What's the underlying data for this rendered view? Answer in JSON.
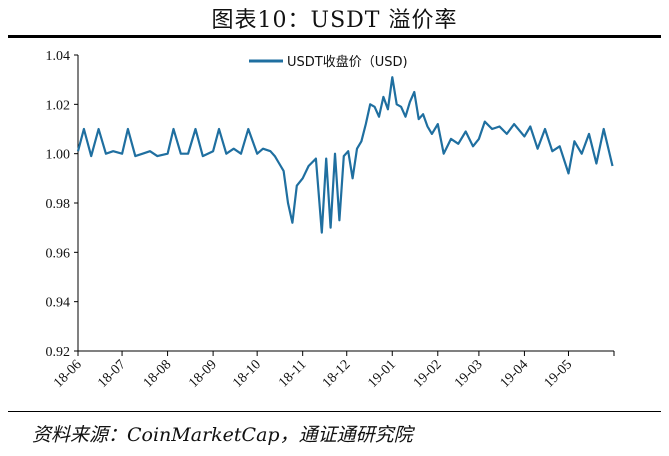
{
  "header": {
    "title": "图表10：USDT 溢价率"
  },
  "footer": {
    "source": "资料来源：CoinMarketCap，通证通研究院"
  },
  "chart_data": {
    "type": "line",
    "title": "",
    "xlabel": "",
    "ylabel": "",
    "legend_position": "top-center",
    "grid": false,
    "ylim": [
      0.92,
      1.04
    ],
    "yticks": [
      "0.92",
      "0.94",
      "0.96",
      "0.98",
      "1.00",
      "1.02",
      "1.04"
    ],
    "xticks": [
      "18-06",
      "18-07",
      "18-08",
      "18-09",
      "18-10",
      "18-11",
      "18-12",
      "19-01",
      "19-02",
      "19-03",
      "19-04",
      "19-05"
    ],
    "series": [
      {
        "name": "USDT收盘价（USD)",
        "color": "#1f6fa0",
        "x": [
          "2018-06-01",
          "2018-06-05",
          "2018-06-10",
          "2018-06-15",
          "2018-06-20",
          "2018-06-25",
          "2018-07-01",
          "2018-07-05",
          "2018-07-10",
          "2018-07-15",
          "2018-07-20",
          "2018-07-25",
          "2018-08-01",
          "2018-08-05",
          "2018-08-10",
          "2018-08-15",
          "2018-08-20",
          "2018-08-25",
          "2018-09-01",
          "2018-09-05",
          "2018-09-10",
          "2018-09-15",
          "2018-09-20",
          "2018-09-25",
          "2018-10-01",
          "2018-10-05",
          "2018-10-10",
          "2018-10-13",
          "2018-10-16",
          "2018-10-19",
          "2018-10-22",
          "2018-10-25",
          "2018-10-28",
          "2018-11-01",
          "2018-11-05",
          "2018-11-10",
          "2018-11-14",
          "2018-11-17",
          "2018-11-20",
          "2018-11-23",
          "2018-11-26",
          "2018-11-29",
          "2018-12-02",
          "2018-12-05",
          "2018-12-08",
          "2018-12-11",
          "2018-12-14",
          "2018-12-17",
          "2018-12-20",
          "2018-12-23",
          "2018-12-26",
          "2018-12-29",
          "2019-01-01",
          "2019-01-04",
          "2019-01-07",
          "2019-01-10",
          "2019-01-13",
          "2019-01-16",
          "2019-01-19",
          "2019-01-22",
          "2019-01-25",
          "2019-01-28",
          "2019-02-01",
          "2019-02-05",
          "2019-02-10",
          "2019-02-15",
          "2019-02-20",
          "2019-02-25",
          "2019-03-01",
          "2019-03-05",
          "2019-03-10",
          "2019-03-15",
          "2019-03-20",
          "2019-03-25",
          "2019-04-01",
          "2019-04-05",
          "2019-04-10",
          "2019-04-15",
          "2019-04-20",
          "2019-04-25",
          "2019-05-01",
          "2019-05-05",
          "2019-05-10",
          "2019-05-15",
          "2019-05-20",
          "2019-05-25",
          "2019-05-31"
        ],
        "values": [
          1.001,
          1.01,
          0.999,
          1.01,
          1.0,
          1.001,
          1.0,
          1.01,
          0.999,
          1.0,
          1.001,
          0.999,
          1.0,
          1.01,
          1.0,
          1.0,
          1.01,
          0.999,
          1.001,
          1.01,
          1.0,
          1.002,
          1.0,
          1.01,
          1.0,
          1.002,
          1.001,
          0.999,
          0.996,
          0.993,
          0.98,
          0.972,
          0.987,
          0.99,
          0.995,
          0.998,
          0.968,
          0.998,
          0.97,
          1.0,
          0.973,
          0.999,
          1.001,
          0.99,
          1.002,
          1.005,
          1.012,
          1.02,
          1.019,
          1.015,
          1.023,
          1.018,
          1.031,
          1.02,
          1.019,
          1.015,
          1.021,
          1.025,
          1.014,
          1.016,
          1.011,
          1.008,
          1.012,
          1.0,
          1.006,
          1.004,
          1.009,
          1.003,
          1.006,
          1.013,
          1.01,
          1.011,
          1.008,
          1.012,
          1.007,
          1.011,
          1.002,
          1.01,
          1.001,
          1.003,
          0.992,
          1.005,
          1.0,
          1.008,
          0.996,
          1.01,
          0.995
        ]
      }
    ]
  }
}
